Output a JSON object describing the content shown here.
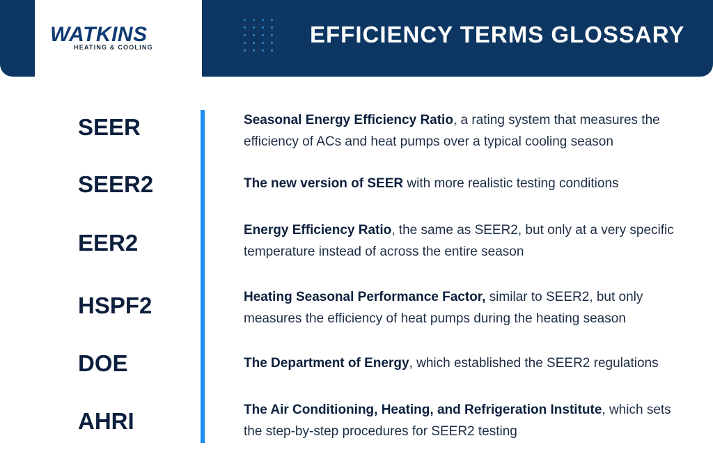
{
  "header": {
    "logo_name": "WATKINS",
    "logo_tagline": "HEATING & COOLING",
    "title": "EFFICIENCY TERMS GLOSSARY"
  },
  "colors": {
    "navy": "#0d3762",
    "accent_blue": "#1b8ef0",
    "term_text": "#0c1f3d"
  },
  "glossary": [
    {
      "term": "SEER",
      "bold": "Seasonal Energy Efficiency Ratio",
      "rest": ", a rating system that measures the efficiency of ACs and heat pumps over a typical cooling season"
    },
    {
      "term": "SEER2",
      "bold": "The new version of SEER",
      "rest": " with more realistic testing conditions"
    },
    {
      "term": "EER2",
      "bold": "Energy Efficiency Ratio",
      "rest": ", the same as SEER2, but only at a very specific temperature instead of across the entire season"
    },
    {
      "term": "HSPF2",
      "bold": "Heating Seasonal Performance Factor,",
      "rest": " similar to SEER2, but only measures the efficiency of heat pumps during the heating season"
    },
    {
      "term": "DOE",
      "bold": "The Department of Energy",
      "rest": ", which established the SEER2 regulations"
    },
    {
      "term": "AHRI",
      "bold": "The Air Conditioning, Heating, and Refrigeration Institute",
      "rest": ", which sets the step-by-step procedures for SEER2 testing"
    }
  ]
}
